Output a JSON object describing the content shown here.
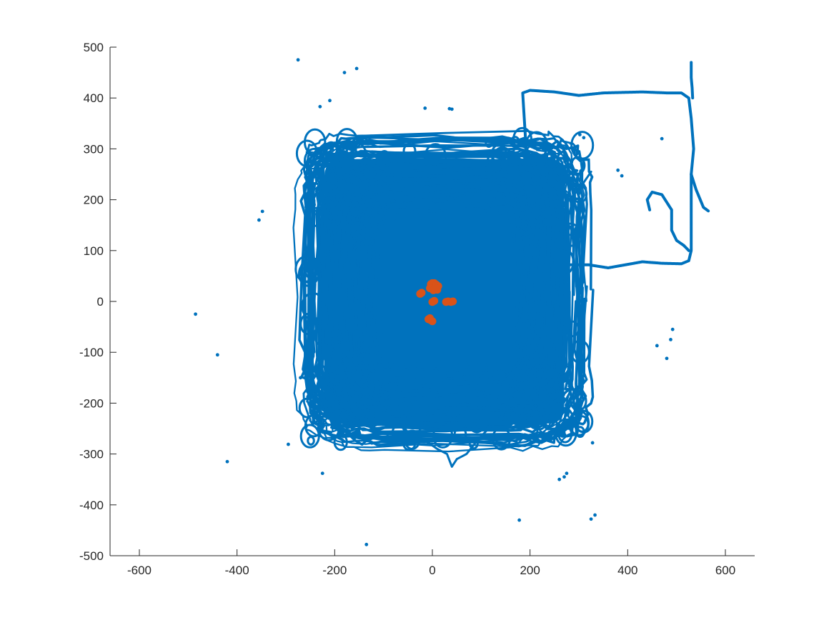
{
  "chart_data": {
    "type": "scatter",
    "title": "",
    "xlabel": "",
    "ylabel": "",
    "xlim": [
      -660,
      660
    ],
    "ylim": [
      -500,
      500
    ],
    "xticks": [
      -600,
      -400,
      -200,
      0,
      200,
      400,
      600
    ],
    "yticks": [
      -500,
      -400,
      -300,
      -200,
      -100,
      0,
      100,
      200,
      300,
      400,
      500
    ],
    "grid": false,
    "colors": {
      "series1": "#0072BD",
      "series2": "#D95319",
      "axis": "#262626"
    },
    "series": [
      {
        "color": "#0072BD",
        "marker_size": "small",
        "dense_region": {
          "x": [
            -260,
            310
          ],
          "y": [
            -280,
            320
          ],
          "shape": "square-trajectory"
        },
        "excursion_path": [
          [
            190,
            65
          ],
          [
            195,
            75
          ],
          [
            205,
            70
          ],
          [
            225,
            72
          ],
          [
            260,
            72
          ],
          [
            320,
            72
          ],
          [
            360,
            66
          ],
          [
            430,
            78
          ],
          [
            470,
            75
          ],
          [
            510,
            74
          ],
          [
            525,
            80
          ],
          [
            530,
            100
          ],
          [
            530,
            200
          ],
          [
            530,
            250
          ],
          [
            535,
            300
          ],
          [
            530,
            360
          ],
          [
            525,
            400
          ],
          [
            510,
            410
          ],
          [
            480,
            410
          ],
          [
            430,
            412
          ],
          [
            350,
            410
          ],
          [
            300,
            405
          ],
          [
            250,
            412
          ],
          [
            200,
            415
          ],
          [
            185,
            410
          ],
          [
            192,
            300
          ],
          [
            200,
            260
          ],
          [
            230,
            230
          ],
          [
            245,
            210
          ]
        ],
        "spur_path": [
          [
            530,
            250
          ],
          [
            540,
            220
          ],
          [
            555,
            185
          ],
          [
            565,
            178
          ]
        ],
        "inner_loop": [
          [
            445,
            180
          ],
          [
            440,
            200
          ],
          [
            450,
            215
          ],
          [
            470,
            210
          ],
          [
            480,
            195
          ],
          [
            490,
            180
          ],
          [
            490,
            140
          ],
          [
            500,
            120
          ],
          [
            515,
            110
          ],
          [
            525,
            100
          ]
        ],
        "branch_path": [
          [
            230,
            230
          ],
          [
            280,
            200
          ],
          [
            300,
            220
          ],
          [
            325,
            255
          ]
        ],
        "bottom_tail": [
          [
            -20,
            -270
          ],
          [
            10,
            -290
          ],
          [
            30,
            -300
          ],
          [
            40,
            -325
          ],
          [
            50,
            -310
          ],
          [
            70,
            -300
          ],
          [
            95,
            -270
          ],
          [
            110,
            -255
          ]
        ],
        "top_column": [
          [
            530,
            470
          ],
          [
            530,
            440
          ],
          [
            532,
            420
          ],
          [
            533,
            400
          ]
        ],
        "outliers": [
          [
            -275,
            475
          ],
          [
            -180,
            450
          ],
          [
            -155,
            458
          ],
          [
            -230,
            383
          ],
          [
            -210,
            395
          ],
          [
            -140,
            312
          ],
          [
            -15,
            380
          ],
          [
            35,
            379
          ],
          [
            40,
            378
          ],
          [
            302,
            328
          ],
          [
            310,
            322
          ],
          [
            380,
            258
          ],
          [
            388,
            247
          ],
          [
            470,
            320
          ],
          [
            -355,
            160
          ],
          [
            -348,
            177
          ],
          [
            -485,
            -25
          ],
          [
            -440,
            -105
          ],
          [
            -420,
            -315
          ],
          [
            -295,
            -281
          ],
          [
            -270,
            -150
          ],
          [
            -225,
            -338
          ],
          [
            -135,
            -478
          ],
          [
            170,
            -283
          ],
          [
            178,
            -430
          ],
          [
            260,
            -350
          ],
          [
            270,
            -345
          ],
          [
            275,
            -338
          ],
          [
            328,
            -278
          ],
          [
            325,
            -428
          ],
          [
            333,
            -420
          ],
          [
            460,
            -87
          ],
          [
            480,
            -112
          ],
          [
            488,
            -75
          ],
          [
            492,
            -55
          ]
        ]
      },
      {
        "color": "#D95319",
        "marker_size": "large",
        "points": [
          [
            -3,
            34
          ],
          [
            0,
            36
          ],
          [
            4,
            36
          ],
          [
            8,
            33
          ],
          [
            12,
            30
          ],
          [
            6,
            27
          ],
          [
            10,
            23
          ],
          [
            -5,
            26
          ],
          [
            2,
            22
          ],
          [
            -25,
            15
          ],
          [
            -22,
            17
          ],
          [
            0,
            -1
          ],
          [
            4,
            1
          ],
          [
            28,
            -1
          ],
          [
            32,
            0
          ],
          [
            38,
            -1
          ],
          [
            42,
            0
          ],
          [
            -5,
            -33
          ],
          [
            -3,
            -37
          ],
          [
            0,
            -39
          ],
          [
            -8,
            -35
          ]
        ]
      }
    ]
  }
}
